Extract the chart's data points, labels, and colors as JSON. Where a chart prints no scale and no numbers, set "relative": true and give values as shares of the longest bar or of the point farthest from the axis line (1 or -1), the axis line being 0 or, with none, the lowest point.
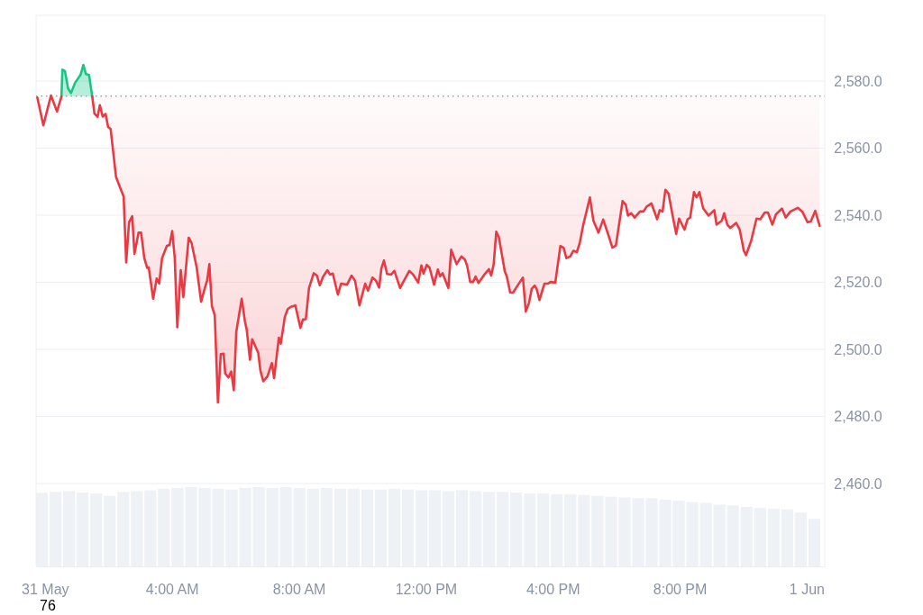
{
  "chart_data": [
    {
      "type": "line",
      "xlim": [
        -0.28,
        24.57
      ],
      "ylim": [
        2435.3,
        2599.6
      ],
      "xticks": [
        {
          "value": 0,
          "label": "31 May"
        },
        {
          "value": 4,
          "label": "4:00 AM"
        },
        {
          "value": 8,
          "label": "8:00 AM"
        },
        {
          "value": 12,
          "label": "12:00 PM"
        },
        {
          "value": 16,
          "label": "4:00 PM"
        },
        {
          "value": 20,
          "label": "8:00 PM"
        },
        {
          "value": 24,
          "label": "1 Jun"
        }
      ],
      "yticks": [
        {
          "value": 2460,
          "label": "2,460.0"
        },
        {
          "value": 2480,
          "label": "2,480.0"
        },
        {
          "value": 2500,
          "label": "2,500.0"
        },
        {
          "value": 2520,
          "label": "2,520.0"
        },
        {
          "value": 2540,
          "label": "2,540.0"
        },
        {
          "value": 2560,
          "label": "2,560.0"
        },
        {
          "value": 2580,
          "label": "2,580.0"
        }
      ],
      "grid": "y",
      "ref_lines": [
        {
          "axis": "y",
          "value": 2575.5,
          "color": "#9aa0aa",
          "line_style": "dotted"
        }
      ],
      "series": [
        {
          "color": "#16c784",
          "x": [
            0.52,
            0.55,
            0.63,
            0.73,
            0.82,
            0.95,
            1.12,
            1.21,
            1.29,
            1.39,
            1.49
          ],
          "values": [
            2575.4,
            2583.4,
            2583.0,
            2577.8,
            2576.4,
            2579.5,
            2581.8,
            2584.8,
            2582.1,
            2581.8,
            2575.4
          ]
        },
        {
          "color": "#ea3943",
          "x": [
            -0.24,
            -0.05,
            0.19,
            0.38,
            0.52,
            1.0,
            1.49,
            1.56,
            1.66,
            1.73,
            1.82,
            1.91,
            1.99,
            2.07,
            2.24,
            2.37,
            2.48,
            2.56,
            2.65,
            2.75,
            2.82,
            2.95,
            3.03,
            3.13,
            3.22,
            3.27,
            3.41,
            3.52,
            3.6,
            3.69,
            3.84,
            3.93,
            4.01,
            4.09,
            4.17,
            4.28,
            4.36,
            4.53,
            4.62,
            4.78,
            4.92,
            5.05,
            5.11,
            5.18,
            5.26,
            5.35,
            5.45,
            5.54,
            5.63,
            5.68,
            5.78,
            5.87,
            5.95,
            6.03,
            6.2,
            6.3,
            6.36,
            6.46,
            6.53,
            6.72,
            6.79,
            6.88,
            7.01,
            7.15,
            7.22,
            7.37,
            7.43,
            7.56,
            7.65,
            7.75,
            7.89,
            8.05,
            8.13,
            8.22,
            8.32,
            8.47,
            8.57,
            8.66,
            8.76,
            8.9,
            8.98,
            9.07,
            9.23,
            9.33,
            9.52,
            9.66,
            9.77,
            9.91,
            10.09,
            10.18,
            10.32,
            10.43,
            10.53,
            10.6,
            10.68,
            10.78,
            10.91,
            11.01,
            11.19,
            11.29,
            11.48,
            11.6,
            11.76,
            11.86,
            11.93,
            12.03,
            12.12,
            12.26,
            12.38,
            12.45,
            12.53,
            12.71,
            12.8,
            12.97,
            13.12,
            13.23,
            13.3,
            13.4,
            13.49,
            13.57,
            13.66,
            13.87,
            13.99,
            14.06,
            14.14,
            14.22,
            14.3,
            14.49,
            14.55,
            14.66,
            14.75,
            14.91,
            15.06,
            15.15,
            15.25,
            15.34,
            15.43,
            15.5,
            15.58,
            15.74,
            15.85,
            15.93,
            16.08,
            16.24,
            16.34,
            16.43,
            16.55,
            16.65,
            16.76,
            16.85,
            16.95,
            17.05,
            17.17,
            17.28,
            17.44,
            17.59,
            17.76,
            17.88,
            17.99,
            18.2,
            18.3,
            18.37,
            18.47,
            18.58,
            18.75,
            18.86,
            18.96,
            19.11,
            19.29,
            19.37,
            19.46,
            19.55,
            19.65,
            19.77,
            19.89,
            19.98,
            20.15,
            20.25,
            20.33,
            20.45,
            20.53,
            20.62,
            20.74,
            20.91,
            21.09,
            21.16,
            21.33,
            21.4,
            21.5,
            21.59,
            21.78,
            21.89,
            22.02,
            22.09,
            22.25,
            22.42,
            22.54,
            22.68,
            22.78,
            22.92,
            23.03,
            23.22,
            23.34,
            23.49,
            23.72,
            23.86,
            24.03,
            24.13,
            24.27,
            24.41
          ],
          "values": [
            2575.1,
            2566.8,
            2575.7,
            2570.9,
            2575.4,
            null,
            2575.4,
            2570.3,
            2569.3,
            2572.8,
            2569.4,
            2570.2,
            2566.3,
            2565.7,
            2551.4,
            2548.2,
            2545.6,
            2525.9,
            2537.9,
            2539.7,
            2528.5,
            2534.8,
            2534.8,
            2527.2,
            2524.3,
            2524.4,
            2515.1,
            2521.1,
            2519.6,
            2527.2,
            2530.8,
            2531.2,
            2535.3,
            2527.2,
            2506.6,
            2523.6,
            2515.6,
            2533.3,
            2531.7,
            2524.5,
            2514.2,
            2518.7,
            2520.5,
            2525.4,
            2512.9,
            2510.2,
            2484.2,
            2498.6,
            2498.7,
            2492.8,
            2491.6,
            2493.4,
            2487.8,
            2505.3,
            2515.1,
            2508.4,
            2505.7,
            2496.9,
            2503.0,
            2499.0,
            2493.6,
            2490.5,
            2491.9,
            2495.9,
            2491.4,
            2503.5,
            2501.7,
            2509.7,
            2512.0,
            2512.7,
            2513.1,
            2506.4,
            2508.9,
            2509.0,
            2518.3,
            2522.7,
            2522.0,
            2519.1,
            2521.6,
            2523.6,
            2522.3,
            2522.6,
            2516.3,
            2519.6,
            2519.3,
            2522.0,
            2520.5,
            2513.1,
            2519.6,
            2517.5,
            2521.4,
            2520.5,
            2518.4,
            2524.1,
            2526.5,
            2522.5,
            2522.3,
            2523.4,
            2518.3,
            2520.1,
            2523.4,
            2522.3,
            2519.9,
            2525.0,
            2522.6,
            2525.2,
            2524.3,
            2519.3,
            2523.8,
            2521.8,
            2522.7,
            2518.3,
            2529.7,
            2525.4,
            2527.7,
            2526.8,
            2525.0,
            2520.1,
            2520.1,
            2521.7,
            2519.8,
            2522.6,
            2523.9,
            2522.0,
            2525.4,
            2535.1,
            2533.5,
            2523.2,
            2521.8,
            2516.9,
            2516.9,
            2519.3,
            2521.4,
            2511.3,
            2513.8,
            2518.1,
            2519.0,
            2517.8,
            2514.7,
            2519.6,
            2519.6,
            2520.1,
            2519.9,
            2530.8,
            2530.3,
            2527.2,
            2527.7,
            2529.4,
            2529.0,
            2531.7,
            2536.6,
            2540.6,
            2545.3,
            2538.4,
            2534.8,
            2538.7,
            2533.9,
            2530.3,
            2531.0,
            2544.2,
            2543.1,
            2539.9,
            2540.6,
            2539.3,
            2541.1,
            2541.1,
            2542.6,
            2543.5,
            2538.8,
            2541.5,
            2541.1,
            2547.6,
            2546.4,
            2540.2,
            2534.4,
            2539.0,
            2535.7,
            2538.8,
            2539.3,
            2546.9,
            2545.3,
            2546.9,
            2542.0,
            2539.9,
            2541.5,
            2537.2,
            2538.4,
            2540.6,
            2537.2,
            2536.2,
            2537.7,
            2535.7,
            2529.4,
            2528.1,
            2532.3,
            2539.0,
            2538.8,
            2540.8,
            2540.8,
            2537.2,
            2540.2,
            2542.0,
            2539.3,
            2541.1,
            2542.2,
            2541.1,
            2537.9,
            2538.1,
            2541.3,
            2536.8
          ]
        }
      ],
      "annotations": [
        "76"
      ]
    },
    {
      "type": "bar",
      "relative": true,
      "color": "#eef1f5",
      "categories": [
        null,
        null,
        null,
        null,
        null,
        null,
        null,
        null,
        null,
        null,
        null,
        null,
        null,
        null,
        null,
        null,
        null,
        null,
        null,
        null,
        null,
        null,
        null,
        null,
        null,
        null,
        null,
        null,
        null,
        null,
        null,
        null,
        null,
        null,
        null,
        null,
        null,
        null,
        null,
        null,
        null,
        null,
        null,
        null,
        null,
        null,
        null,
        null,
        null,
        null,
        null,
        null,
        null,
        null,
        null,
        null,
        null,
        null
      ],
      "values": [
        0.93,
        0.94,
        0.95,
        0.93,
        0.92,
        0.89,
        0.94,
        0.95,
        0.96,
        0.98,
        0.99,
        1.0,
        0.99,
        0.98,
        0.97,
        0.99,
        1.0,
        0.99,
        1.0,
        0.99,
        0.98,
        0.99,
        0.98,
        0.98,
        0.97,
        0.97,
        0.98,
        0.97,
        0.96,
        0.96,
        0.95,
        0.96,
        0.95,
        0.94,
        0.94,
        0.93,
        0.92,
        0.92,
        0.91,
        0.91,
        0.9,
        0.89,
        0.88,
        0.87,
        0.86,
        0.86,
        0.84,
        0.83,
        0.81,
        0.8,
        0.78,
        0.77,
        0.75,
        0.74,
        0.73,
        0.72,
        0.68,
        0.6
      ]
    }
  ]
}
